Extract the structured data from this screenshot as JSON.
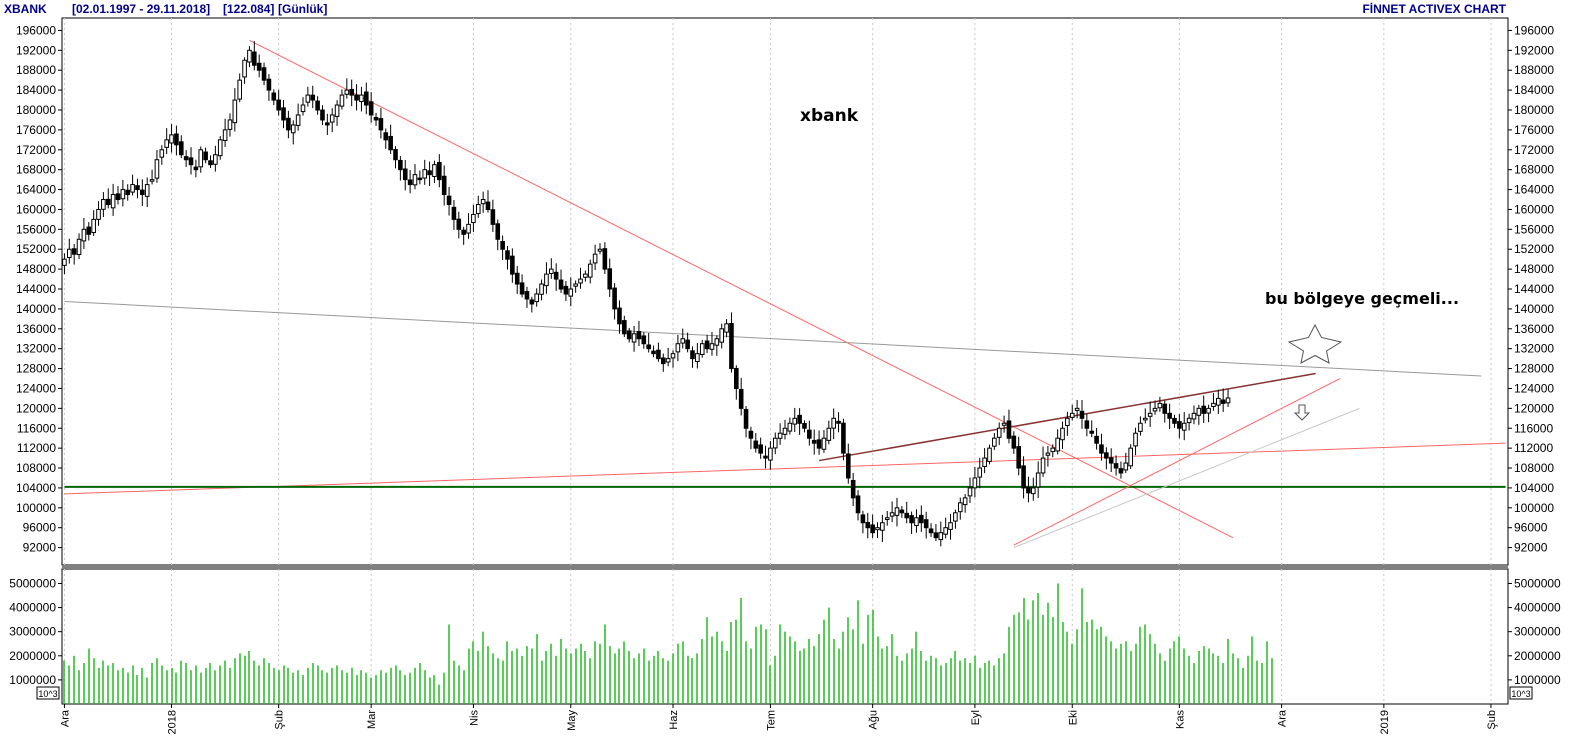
{
  "header": {
    "symbol": "XBANK",
    "range": "[02.01.1997 - 29.11.2018]",
    "last": "[122.084]",
    "period": "[Günlük]",
    "brand": "FİNNET ACTIVEX CHART"
  },
  "annotations": {
    "title_label": "xbank",
    "target_label": "bu bölgeye geçmeli...",
    "star_icon": "star-outline-icon",
    "arrow_icon": "arrow-down-outline-icon"
  },
  "colors": {
    "candle": "#000000",
    "volume": "#22bb22",
    "support": "#006600",
    "trend_red": "#ff6666",
    "trend_gray": "#999999",
    "trend_dark": "#883333",
    "trend_light": "#c8c8c8",
    "header_text": "#00008b"
  },
  "chart_data": [
    {
      "type": "candlestick",
      "name": "price",
      "y_ticks": [
        92000,
        96000,
        100000,
        104000,
        108000,
        112000,
        116000,
        120000,
        124000,
        128000,
        132000,
        136000,
        140000,
        144000,
        148000,
        152000,
        156000,
        160000,
        164000,
        168000,
        172000,
        176000,
        180000,
        184000,
        188000,
        192000,
        196000
      ],
      "ylim": [
        88500,
        198500
      ],
      "x_ticks": [
        {
          "label": "Ara",
          "idx": 0
        },
        {
          "label": "2018",
          "idx": 22
        },
        {
          "label": "Şub",
          "idx": 44
        },
        {
          "label": "Mar",
          "idx": 63
        },
        {
          "label": "Nis",
          "idx": 84
        },
        {
          "label": "May",
          "idx": 104
        },
        {
          "label": "Haz",
          "idx": 125
        },
        {
          "label": "Tem",
          "idx": 145
        },
        {
          "label": "Ağu",
          "idx": 166
        },
        {
          "label": "Eyl",
          "idx": 187
        },
        {
          "label": "Eki",
          "idx": 207
        },
        {
          "label": "Kas",
          "idx": 229
        },
        {
          "label": "Ara",
          "idx": 250
        },
        {
          "label": "2019",
          "idx": 271
        },
        {
          "label": "Şub",
          "idx": 293
        }
      ],
      "closes": [
        150000,
        152000,
        151000,
        154000,
        156000,
        155000,
        158000,
        160000,
        162000,
        161000,
        163000,
        162000,
        164000,
        163000,
        165000,
        164000,
        163000,
        165000,
        166000,
        170000,
        172000,
        174000,
        175000,
        173000,
        171000,
        170000,
        169000,
        168000,
        172000,
        170000,
        169000,
        171000,
        174000,
        176000,
        178000,
        182000,
        186000,
        190000,
        192000,
        189000,
        188000,
        186000,
        184000,
        182000,
        180000,
        178000,
        176000,
        177000,
        179000,
        181000,
        183000,
        182000,
        180000,
        178000,
        177000,
        179000,
        181000,
        183000,
        184000,
        183000,
        182000,
        183000,
        181000,
        179000,
        178000,
        176000,
        174000,
        172000,
        170000,
        168000,
        166000,
        165000,
        167000,
        166000,
        168000,
        167000,
        169000,
        166000,
        163000,
        161000,
        158000,
        156000,
        155000,
        157000,
        159000,
        161000,
        162000,
        160000,
        157000,
        154000,
        152000,
        150000,
        147000,
        145000,
        143000,
        142000,
        141000,
        143000,
        145000,
        147000,
        148000,
        146000,
        144000,
        143000,
        144000,
        145000,
        146000,
        147000,
        149000,
        151000,
        152000,
        148000,
        144000,
        140000,
        137000,
        135000,
        134000,
        135000,
        134000,
        133000,
        132000,
        131000,
        130000,
        129000,
        130000,
        131000,
        133000,
        134000,
        132000,
        130000,
        131000,
        133000,
        132000,
        133000,
        134000,
        136000,
        137000,
        128000,
        124000,
        120000,
        116000,
        114000,
        112000,
        111000,
        110000,
        112000,
        114000,
        115000,
        116000,
        117000,
        118000,
        117000,
        116000,
        114000,
        113000,
        112000,
        114000,
        116000,
        118000,
        117000,
        111000,
        106000,
        102000,
        99000,
        97000,
        96000,
        95000,
        96000,
        97000,
        98000,
        99000,
        100000,
        99000,
        98000,
        97000,
        98000,
        97000,
        96000,
        95000,
        94000,
        95000,
        96000,
        97000,
        99000,
        101000,
        102000,
        104000,
        106000,
        108000,
        110000,
        112000,
        114000,
        116000,
        117000,
        114000,
        112000,
        108000,
        104000,
        103000,
        104000,
        107000,
        110000,
        111000,
        112000,
        114000,
        116000,
        118000,
        119000,
        120000,
        118000,
        116000,
        115000,
        113000,
        111000,
        110000,
        109000,
        108000,
        107000,
        109000,
        112000,
        115000,
        117000,
        118000,
        119000,
        120000,
        121000,
        119000,
        118000,
        117000,
        116000,
        117000,
        118000,
        119000,
        120000,
        119000,
        120000,
        121000,
        122000,
        121000,
        122084
      ],
      "vol_ticks": [
        1000000,
        2000000,
        3000000,
        4000000,
        5000000
      ],
      "vol_ylim": [
        0,
        5600000
      ],
      "vol_unit": "10^3",
      "volumes": [
        1800000,
        1600000,
        2000000,
        1400000,
        1700000,
        2300000,
        1900000,
        1500000,
        1800000,
        1600000,
        1700000,
        1400000,
        1500000,
        1300000,
        1600000,
        1200000,
        1500000,
        1100000,
        1700000,
        1900000,
        1600000,
        1400000,
        1500000,
        1300000,
        1800000,
        1700000,
        1400000,
        1600000,
        1300000,
        1500000,
        1700000,
        1400000,
        1600000,
        1800000,
        1500000,
        1900000,
        2100000,
        2000000,
        2200000,
        1800000,
        1600000,
        1900000,
        1700000,
        1500000,
        1400000,
        1600000,
        1500000,
        1300000,
        1400000,
        1200000,
        1500000,
        1700000,
        1600000,
        1400000,
        1300000,
        1500000,
        1600000,
        1400000,
        1300000,
        1500000,
        1200000,
        1400000,
        1300000,
        1100000,
        1200000,
        1400000,
        1300000,
        1500000,
        1600000,
        1400000,
        1200000,
        1300000,
        1500000,
        1700000,
        1400000,
        1100000,
        1200000,
        800000,
        1300000,
        3300000,
        1800000,
        1600000,
        1400000,
        2300000,
        2600000,
        2200000,
        3000000,
        2400000,
        2100000,
        1900000,
        1800000,
        2600000,
        2200000,
        2300000,
        2000000,
        2400000,
        2300000,
        2900000,
        1800000,
        2200000,
        2500000,
        2000000,
        2700000,
        2300000,
        2100000,
        2300000,
        2500000,
        2200000,
        1900000,
        2600000,
        2500000,
        3300000,
        2400000,
        2100000,
        2300000,
        2600000,
        2200000,
        1900000,
        2100000,
        2300000,
        1800000,
        2000000,
        2200000,
        1900000,
        1800000,
        2100000,
        2500000,
        2600000,
        2000000,
        1900000,
        2100000,
        2700000,
        3600000,
        2800000,
        3000000,
        2600000,
        2200000,
        3400000,
        3500000,
        4400000,
        2600000,
        2300000,
        3200000,
        3300000,
        3100000,
        1600000,
        2000000,
        3300000,
        3000000,
        2800000,
        2600000,
        2200000,
        2300000,
        2700000,
        2400000,
        2900000,
        3500000,
        4000000,
        2700000,
        2300000,
        3000000,
        3600000,
        3100000,
        4300000,
        2500000,
        3700000,
        3900000,
        2800000,
        2300000,
        2400000,
        2900000,
        2000000,
        1800000,
        2100000,
        2300000,
        3000000,
        2200000,
        1800000,
        2000000,
        1900000,
        1600000,
        1700000,
        1900000,
        2200000,
        1800000,
        1900000,
        1700000,
        2000000,
        1500000,
        1700000,
        1800000,
        1600000,
        1900000,
        2100000,
        3200000,
        3700000,
        3800000,
        4400000,
        3500000,
        4300000,
        4600000,
        3700000,
        4200000,
        3600000,
        5000000,
        3400000,
        3000000,
        2500000,
        3100000,
        4800000,
        3400000,
        3500000,
        3100000,
        3200000,
        2800000,
        2600000,
        2300000,
        2500000,
        2600000,
        2200000,
        2500000,
        3200000,
        3300000,
        2900000,
        2500000,
        2100000,
        1800000,
        2300000,
        2600000,
        2800000,
        2300000,
        2000000,
        1700000,
        2200000,
        2400000,
        2300000,
        2100000,
        2000000,
        1700000,
        2700000,
        2100000,
        1900000,
        1500000,
        2000000,
        2800000,
        1800000,
        1700000,
        2600000,
        1900000
      ],
      "trendlines": [
        {
          "name": "descending-trend",
          "color": "#ff6666",
          "points": [
            [
              38,
              194000
            ],
            [
              240,
              94000
            ]
          ]
        },
        {
          "name": "long-term-resistance",
          "color": "#999999",
          "points": [
            [
              0,
              141500
            ],
            [
              291,
              126500
            ]
          ]
        },
        {
          "name": "long-term-support",
          "color": "#ff6666",
          "points": [
            [
              0,
              102800
            ],
            [
              296,
              113000
            ]
          ]
        },
        {
          "name": "support-horizontal",
          "color": "#006600",
          "points": [
            [
              0,
              104200
            ],
            [
              296,
              104200
            ]
          ]
        },
        {
          "name": "wedge-top",
          "color": "#883333",
          "points": [
            [
              155,
              109500
            ],
            [
              257,
              127000
            ]
          ]
        },
        {
          "name": "wedge-bottom",
          "color": "#ff6666",
          "points": [
            [
              195,
              92500
            ],
            [
              262,
              126000
            ]
          ]
        },
        {
          "name": "inner-support",
          "color": "#c8c8c8",
          "points": [
            [
              195,
              92000
            ],
            [
              266,
              120000
            ]
          ]
        }
      ]
    }
  ]
}
